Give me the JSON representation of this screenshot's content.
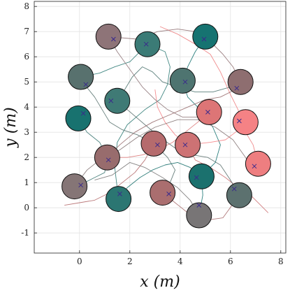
{
  "chart_data": {
    "type": "scatter",
    "title": "",
    "xlabel": "x (m)",
    "ylabel": "y (m)",
    "xlim": [
      -1.8,
      8.2
    ],
    "ylim": [
      -1.8,
      8.2
    ],
    "xticks": [
      0,
      2,
      4,
      6,
      8
    ],
    "yticks": [
      -1,
      0,
      1,
      2,
      3,
      4,
      5,
      6,
      7,
      8
    ],
    "grid": true,
    "agents": [
      {
        "x": 1.15,
        "y": 6.8,
        "goal": [
          1.35,
          6.7
        ],
        "color": "#8e7478"
      },
      {
        "x": 2.7,
        "y": 6.5,
        "goal": [
          2.65,
          6.5
        ],
        "color": "#3b7b76"
      },
      {
        "x": 5.0,
        "y": 6.8,
        "goal": [
          4.95,
          6.7
        ],
        "color": "#167371"
      },
      {
        "x": 0.05,
        "y": 5.2,
        "goal": [
          0.25,
          4.9
        ],
        "color": "#58716e"
      },
      {
        "x": 4.1,
        "y": 5.05,
        "goal": [
          4.2,
          5.0
        ],
        "color": "#4e7470"
      },
      {
        "x": 6.4,
        "y": 5.0,
        "goal": [
          6.25,
          4.75
        ],
        "color": "#8e6e70"
      },
      {
        "x": 1.5,
        "y": 4.25,
        "goal": [
          1.25,
          4.25
        ],
        "color": "#3f7a75"
      },
      {
        "x": -0.05,
        "y": 3.55,
        "goal": [
          0.15,
          3.75
        ],
        "color": "#18726f"
      },
      {
        "x": 5.15,
        "y": 3.8,
        "goal": [
          5.1,
          3.8
        ],
        "color": "#dd7576"
      },
      {
        "x": 6.6,
        "y": 3.4,
        "goal": [
          6.35,
          3.45
        ],
        "color": "#f58285"
      },
      {
        "x": 1.1,
        "y": 2.0,
        "goal": [
          1.15,
          1.9
        ],
        "color": "#986c6d"
      },
      {
        "x": 2.95,
        "y": 2.55,
        "goal": [
          3.1,
          2.5
        ],
        "color": "#b56b6d"
      },
      {
        "x": 4.3,
        "y": 2.5,
        "goal": [
          4.2,
          2.5
        ],
        "color": "#cd7274"
      },
      {
        "x": 7.1,
        "y": 1.75,
        "goal": [
          6.95,
          1.65
        ],
        "color": "#ee7e80"
      },
      {
        "x": 4.85,
        "y": 1.25,
        "goal": [
          4.65,
          1.2
        ],
        "color": "#1b716e"
      },
      {
        "x": -0.2,
        "y": 0.85,
        "goal": [
          0.05,
          0.9
        ],
        "color": "#857576"
      },
      {
        "x": 1.55,
        "y": 0.35,
        "goal": [
          1.6,
          0.55
        ],
        "color": "#2b7672"
      },
      {
        "x": 3.3,
        "y": 0.6,
        "goal": [
          3.55,
          0.55
        ],
        "color": "#aa6e6f"
      },
      {
        "x": 6.35,
        "y": 0.5,
        "goal": [
          6.15,
          0.75
        ],
        "color": "#5c716f"
      },
      {
        "x": 4.75,
        "y": -0.3,
        "goal": [
          4.75,
          0.1
        ],
        "color": "#787576"
      }
    ],
    "trajectories": [
      {
        "color": "#2f7b76",
        "points": [
          [
            0.05,
            5.2
          ],
          [
            0.8,
            5.35
          ],
          [
            1.4,
            5.6
          ],
          [
            2.0,
            5.8
          ],
          [
            2.7,
            6.5
          ],
          [
            3.4,
            6.2
          ],
          [
            3.6,
            5.6
          ],
          [
            3.5,
            4.9
          ],
          [
            3.2,
            4.3
          ],
          [
            2.6,
            3.9
          ],
          [
            1.9,
            3.3
          ],
          [
            1.5,
            2.6
          ],
          [
            1.4,
            1.6
          ],
          [
            1.55,
            0.35
          ]
        ]
      },
      {
        "color": "#167371",
        "points": [
          [
            5.0,
            6.8
          ],
          [
            4.6,
            6.2
          ],
          [
            4.3,
            5.6
          ],
          [
            4.1,
            5.05
          ],
          [
            4.3,
            4.4
          ],
          [
            4.8,
            3.9
          ],
          [
            5.3,
            3.2
          ],
          [
            5.6,
            2.5
          ],
          [
            5.4,
            1.8
          ],
          [
            4.85,
            1.25
          ],
          [
            4.9,
            0.5
          ],
          [
            4.75,
            -0.3
          ]
        ]
      },
      {
        "color": "#3f7a75",
        "points": [
          [
            -0.05,
            3.55
          ],
          [
            0.3,
            3.0
          ],
          [
            0.8,
            2.6
          ],
          [
            1.1,
            2.0
          ],
          [
            1.0,
            1.4
          ],
          [
            0.6,
            1.2
          ],
          [
            0.2,
            1.0
          ],
          [
            -0.2,
            0.85
          ]
        ]
      },
      {
        "color": "#4e7470",
        "points": [
          [
            1.5,
            4.25
          ],
          [
            1.8,
            4.7
          ],
          [
            2.1,
            5.2
          ],
          [
            2.5,
            5.6
          ],
          [
            2.9,
            5.4
          ],
          [
            3.3,
            5.0
          ],
          [
            3.9,
            4.8
          ],
          [
            4.6,
            4.6
          ],
          [
            5.3,
            4.6
          ],
          [
            6.0,
            4.8
          ],
          [
            6.4,
            5.0
          ]
        ]
      },
      {
        "color": "#58716e",
        "points": [
          [
            0.2,
            4.9
          ],
          [
            0.6,
            4.4
          ],
          [
            0.9,
            3.9
          ],
          [
            1.2,
            3.4
          ],
          [
            1.7,
            3.1
          ],
          [
            2.3,
            2.9
          ],
          [
            2.95,
            2.55
          ],
          [
            3.5,
            2.0
          ],
          [
            3.8,
            1.5
          ],
          [
            3.6,
            1.0
          ],
          [
            3.3,
            0.6
          ]
        ]
      },
      {
        "color": "#dd7576",
        "points": [
          [
            5.15,
            3.8
          ],
          [
            4.7,
            3.4
          ],
          [
            4.2,
            3.0
          ],
          [
            3.7,
            2.6
          ],
          [
            3.1,
            2.3
          ],
          [
            2.5,
            2.1
          ],
          [
            1.9,
            2.0
          ],
          [
            1.1,
            2.0
          ]
        ]
      },
      {
        "color": "#f58285",
        "points": [
          [
            6.6,
            3.4
          ],
          [
            6.2,
            3.0
          ],
          [
            5.8,
            2.7
          ],
          [
            5.2,
            2.6
          ],
          [
            4.3,
            2.5
          ],
          [
            3.8,
            2.9
          ],
          [
            3.4,
            3.4
          ],
          [
            3.1,
            4.0
          ],
          [
            3.0,
            4.7
          ]
        ]
      },
      {
        "color": "#ee7e80",
        "points": [
          [
            7.1,
            1.75
          ],
          [
            6.9,
            2.5
          ],
          [
            6.6,
            3.0
          ],
          [
            6.3,
            3.9
          ],
          [
            6.0,
            4.5
          ],
          [
            5.6,
            5.4
          ],
          [
            5.2,
            6.1
          ],
          [
            4.6,
            6.5
          ],
          [
            3.9,
            6.9
          ],
          [
            3.2,
            7.2
          ]
        ]
      },
      {
        "color": "#cd7274",
        "points": [
          [
            4.3,
            2.5
          ],
          [
            4.6,
            1.9
          ],
          [
            5.2,
            1.6
          ],
          [
            5.8,
            1.2
          ],
          [
            6.3,
            0.8
          ],
          [
            6.8,
            0.5
          ],
          [
            7.2,
            0.1
          ],
          [
            7.5,
            -0.2
          ]
        ]
      },
      {
        "color": "#b56b6d",
        "points": [
          [
            2.95,
            2.55
          ],
          [
            2.6,
            1.9
          ],
          [
            2.2,
            1.4
          ],
          [
            1.7,
            1.0
          ],
          [
            1.2,
            0.6
          ],
          [
            0.6,
            0.3
          ],
          [
            0.0,
            0.2
          ],
          [
            -0.6,
            0.1
          ]
        ]
      },
      {
        "color": "#aa6e6f",
        "points": [
          [
            3.3,
            0.6
          ],
          [
            3.8,
            0.2
          ],
          [
            4.3,
            -0.2
          ],
          [
            5.0,
            -0.5
          ],
          [
            5.7,
            -0.4
          ],
          [
            6.35,
            0.5
          ]
        ]
      },
      {
        "color": "#857576",
        "points": [
          [
            -0.2,
            0.85
          ],
          [
            0.3,
            1.5
          ],
          [
            0.8,
            1.9
          ],
          [
            1.6,
            2.3
          ],
          [
            2.3,
            2.8
          ],
          [
            3.0,
            3.2
          ],
          [
            3.9,
            3.5
          ],
          [
            4.7,
            3.5
          ],
          [
            5.4,
            3.2
          ],
          [
            6.1,
            2.7
          ],
          [
            6.6,
            2.0
          ],
          [
            7.0,
            1.3
          ]
        ]
      },
      {
        "color": "#8e6e70",
        "points": [
          [
            6.4,
            5.0
          ],
          [
            6.1,
            5.6
          ],
          [
            5.7,
            6.1
          ],
          [
            5.2,
            6.6
          ],
          [
            4.6,
            7.0
          ],
          [
            3.9,
            7.1
          ],
          [
            3.1,
            7.0
          ],
          [
            2.3,
            6.7
          ],
          [
            1.15,
            6.8
          ]
        ]
      },
      {
        "color": "#8e7478",
        "points": [
          [
            1.15,
            6.8
          ],
          [
            1.5,
            6.2
          ],
          [
            2.0,
            5.5
          ],
          [
            2.5,
            4.8
          ],
          [
            3.0,
            4.3
          ],
          [
            3.5,
            3.9
          ],
          [
            4.1,
            3.6
          ],
          [
            4.8,
            3.6
          ]
        ]
      },
      {
        "color": "#787576",
        "points": [
          [
            4.75,
            -0.3
          ],
          [
            4.4,
            0.3
          ],
          [
            3.9,
            0.8
          ],
          [
            3.3,
            1.2
          ],
          [
            2.6,
            1.6
          ],
          [
            2.0,
            1.8
          ],
          [
            1.3,
            1.3
          ],
          [
            0.6,
            1.1
          ]
        ]
      },
      {
        "color": "#5c716f",
        "points": [
          [
            6.35,
            0.5
          ],
          [
            6.0,
            1.1
          ],
          [
            5.6,
            1.7
          ],
          [
            5.1,
            2.0
          ],
          [
            4.5,
            2.1
          ],
          [
            3.9,
            2.3
          ],
          [
            3.2,
            2.8
          ],
          [
            2.6,
            3.3
          ],
          [
            1.9,
            3.9
          ],
          [
            1.5,
            4.25
          ]
        ]
      },
      {
        "color": "#1b716e",
        "points": [
          [
            4.85,
            1.25
          ],
          [
            4.4,
            1.6
          ],
          [
            3.9,
            1.8
          ],
          [
            3.4,
            1.7
          ],
          [
            2.9,
            1.5
          ],
          [
            2.4,
            1.2
          ],
          [
            1.9,
            0.8
          ],
          [
            1.55,
            0.35
          ]
        ]
      },
      {
        "color": "#986c6d",
        "points": [
          [
            1.1,
            2.0
          ],
          [
            1.6,
            2.5
          ],
          [
            2.2,
            3.0
          ],
          [
            2.9,
            3.4
          ],
          [
            3.6,
            3.7
          ],
          [
            4.3,
            4.0
          ],
          [
            5.0,
            4.3
          ],
          [
            5.6,
            4.4
          ],
          [
            6.2,
            4.7
          ]
        ]
      }
    ]
  }
}
